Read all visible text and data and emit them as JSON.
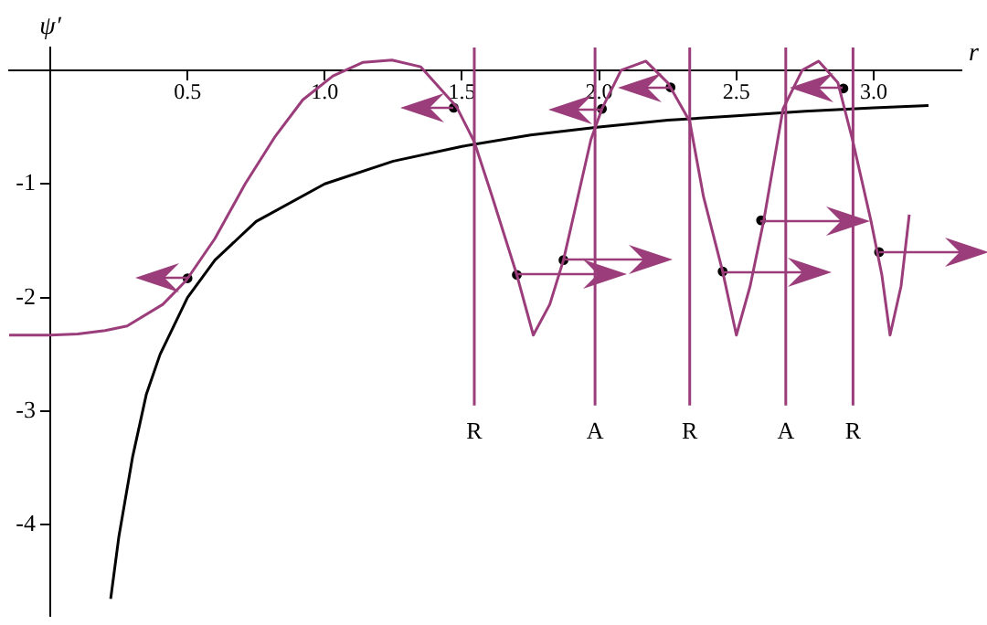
{
  "chart_data": {
    "type": "line",
    "xlabel": "r",
    "ylabel": "ψ′",
    "xlim": [
      -0.15,
      3.32
    ],
    "ylim": [
      -4.8,
      0.2
    ],
    "xticks": [
      0.5,
      {
        "value": 1,
        "label": "1.0"
      },
      1.5,
      {
        "value": 2,
        "label": "2.0"
      },
      2.5,
      {
        "value": 3,
        "label": "3.0"
      }
    ],
    "yticks": [
      -1,
      -2,
      -3,
      -4
    ],
    "grid": false,
    "legend": false,
    "marker": "none",
    "line_style": "solid",
    "series": [
      {
        "type": "line",
        "color": "#9b3d7a",
        "x": [
          -0.15,
          0,
          0.1,
          0.2,
          0.28,
          0.41,
          0.495,
          0.6,
          0.71,
          0.82,
          0.92,
          1.03,
          1.14,
          1.245,
          1.35,
          1.48,
          1.545,
          1.61,
          1.7,
          1.76,
          1.82,
          1.87,
          1.97,
          2.01,
          2.08,
          2.17,
          2.25,
          2.33,
          2.38,
          2.45,
          2.5,
          2.55,
          2.6,
          2.67,
          2.74,
          2.8,
          2.87,
          2.925,
          2.99,
          3.03,
          3.06,
          3.1,
          3.13
        ],
        "values": [
          -2.33,
          -2.33,
          -2.32,
          -2.29,
          -2.25,
          -2.06,
          -1.85,
          -1.48,
          -1.0,
          -0.58,
          -0.26,
          -0.05,
          0.07,
          0.09,
          0.03,
          -0.32,
          -0.63,
          -1.11,
          -1.8,
          -2.33,
          -2.06,
          -1.67,
          -0.61,
          -0.34,
          0,
          0.08,
          -0.11,
          -0.45,
          -1.11,
          -1.77,
          -2.33,
          -1.9,
          -1.32,
          -0.34,
          0,
          0.08,
          -0.11,
          -0.63,
          -1.32,
          -1.8,
          -2.33,
          -1.9,
          -1.27
        ]
      },
      {
        "type": "line",
        "color": "#000000",
        "x": [
          0.22,
          0.25,
          0.3,
          0.35,
          0.4,
          0.5,
          0.6,
          0.75,
          1.0,
          1.25,
          1.5,
          1.75,
          2.0,
          2.25,
          2.5,
          2.75,
          3.0,
          3.2
        ],
        "values": [
          -4.65,
          -4.1,
          -3.4,
          -2.85,
          -2.5,
          -2.0,
          -1.67,
          -1.33,
          -1.0,
          -0.8,
          -0.67,
          -0.57,
          -0.5,
          -0.44,
          -0.4,
          -0.36,
          -0.33,
          -0.31
        ]
      },
      {
        "type": "scatter",
        "marker": "circle",
        "color": "#000000",
        "x": [
          0.5,
          1.47,
          2.01,
          2.26,
          2.89
        ],
        "values": [
          -1.83,
          -0.33,
          -0.34,
          -0.15,
          -0.16
        ]
      },
      {
        "type": "scatter",
        "marker": "circle",
        "color": "#000000",
        "x": [
          1.7,
          1.87,
          2.45,
          2.59,
          3.02
        ],
        "values": [
          -1.8,
          -1.67,
          -1.77,
          -1.32,
          -1.6
        ]
      }
    ],
    "ref_lines": [
      {
        "axis": "x",
        "value": 1.545,
        "label": "R",
        "color": "#9b3d7a"
      },
      {
        "axis": "x",
        "value": 1.985,
        "label": "A",
        "color": "#9b3d7a"
      },
      {
        "axis": "x",
        "value": 2.33,
        "label": "R",
        "color": "#9b3d7a"
      },
      {
        "axis": "x",
        "value": 2.68,
        "label": "A",
        "color": "#9b3d7a"
      },
      {
        "axis": "x",
        "value": 2.925,
        "label": "R",
        "color": "#9b3d7a"
      }
    ]
  }
}
